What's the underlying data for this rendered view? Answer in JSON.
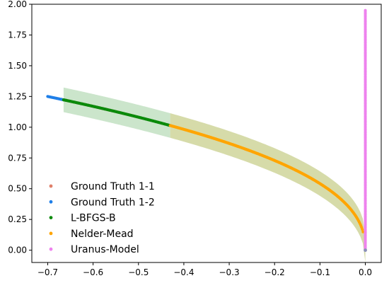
{
  "chart_data": {
    "type": "scatter",
    "title": "",
    "xlabel": "",
    "ylabel": "",
    "xlim": [
      -0.735,
      0.035
    ],
    "ylim": [
      -0.1,
      2.0
    ],
    "x_ticks": [
      -0.7,
      -0.6,
      -0.5,
      -0.4,
      -0.3,
      -0.2,
      -0.1,
      0.0
    ],
    "x_tick_labels": [
      "−0.7",
      "−0.6",
      "−0.5",
      "−0.4",
      "−0.3",
      "−0.2",
      "−0.1",
      "0.0"
    ],
    "y_ticks": [
      0.0,
      0.25,
      0.5,
      0.75,
      1.0,
      1.25,
      1.5,
      1.75,
      2.0
    ],
    "y_tick_labels": [
      "0.00",
      "0.25",
      "0.50",
      "0.75",
      "1.00",
      "1.25",
      "1.50",
      "1.75",
      "2.00"
    ],
    "grid": false,
    "legend_position": "lower-left",
    "curve_model": {
      "x0": -0.7,
      "y0": 1.25,
      "exponent": 0.43
    },
    "bands": [
      {
        "x_range": [
          -0.665,
          -0.43
        ],
        "half_width": 0.1,
        "color": "#b9dcb9",
        "opacity": 0.75
      },
      {
        "x_range": [
          -0.43,
          0.0
        ],
        "half_width": 0.1,
        "color": "#c8cf8c",
        "opacity": 0.75
      }
    ],
    "series": [
      {
        "name": "Ground Truth 1-1",
        "color": "#e0806a",
        "x_range": [
          -0.67,
          -0.5
        ],
        "n_points": 60
      },
      {
        "name": "Ground Truth 1-2",
        "color": "#1f7fe8",
        "x_range": [
          -0.7,
          -0.66
        ],
        "n_points": 18
      },
      {
        "name": "L-BFGS-B",
        "color": "#0a8a0a",
        "x_range": [
          -0.665,
          -0.43
        ],
        "n_points": 120
      },
      {
        "name": "Nelder-Mead",
        "color": "#ffa500",
        "x_range": [
          -0.43,
          -0.005
        ],
        "n_points": 260
      },
      {
        "name": "Uranus-Model",
        "color": "#ee82ee",
        "x": 0.0,
        "y_range": [
          0.0,
          1.95
        ],
        "n_points": 150
      }
    ],
    "extra_points": [
      {
        "x": 0.0,
        "y": 0.0,
        "color": "#8a90b8"
      }
    ]
  }
}
